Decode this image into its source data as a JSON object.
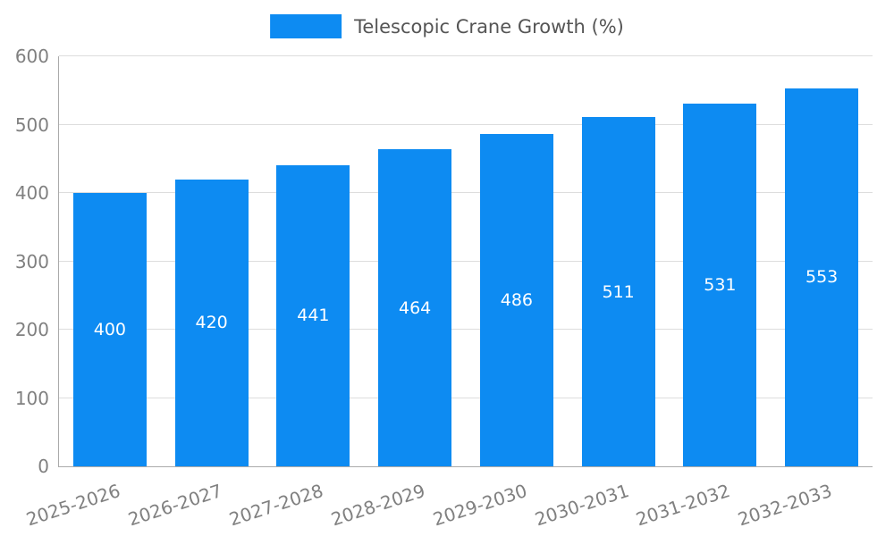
{
  "legend": {
    "label": "Telescopic Crane Growth (%)"
  },
  "colors": {
    "bar": "#0d8bf2",
    "grid": "#dddddd",
    "axis": "#aaaaaa",
    "tick_text": "#808080",
    "value_text": "#ffffff"
  },
  "chart_data": {
    "type": "bar",
    "title": "Telescopic Crane Growth (%)",
    "categories": [
      "2025-2026",
      "2026-2027",
      "2027-2028",
      "2028-2029",
      "2029-2030",
      "2030-2031",
      "2031-2032",
      "2032-2033"
    ],
    "values": [
      400,
      420,
      441,
      464,
      486,
      511,
      531,
      553
    ],
    "xlabel": "",
    "ylabel": "",
    "ylim": [
      0,
      600
    ],
    "ytick_step": 100,
    "grid": true,
    "legend_position": "top-center",
    "value_labels": "inside-center"
  }
}
